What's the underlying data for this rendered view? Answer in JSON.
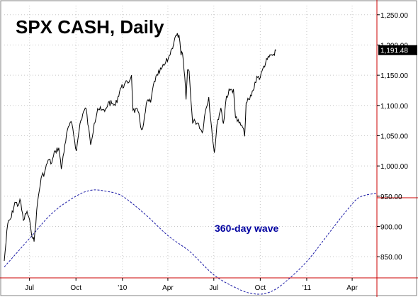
{
  "chart_data": {
    "type": "line",
    "title": "SPX CASH, Daily",
    "colors": {
      "price": "#000000",
      "wave": "#1a1aa6",
      "frame": "#cc0000",
      "grid": "#c8c8c8",
      "title": "#000000",
      "wave_label": "#0000a0",
      "last_box_bg": "#000000",
      "last_box_text": "#ffffff"
    },
    "ylim": [
      815,
      1265
    ],
    "y_ticks": [
      850,
      900,
      950,
      1000,
      1050,
      1100,
      1150,
      1200,
      1250
    ],
    "y_tick_labels": [
      "850.00",
      "900.00",
      "950.00",
      "1,000.00",
      "1,050.00",
      "1,100.00",
      "1,150.00",
      "1,200.00",
      "1,250.00"
    ],
    "x_range": [
      "2009-05-12",
      "2011-05-20"
    ],
    "x_ticks": [
      {
        "label": "Jul",
        "date": "2009-07-01"
      },
      {
        "label": "Oct",
        "date": "2009-10-01"
      },
      {
        "label": "'10",
        "date": "2010-01-01"
      },
      {
        "label": "Apr",
        "date": "2010-04-01"
      },
      {
        "label": "Jul",
        "date": "2010-07-01"
      },
      {
        "label": "Oct",
        "date": "2010-10-01"
      },
      {
        "label": "'11",
        "date": "2011-01-01"
      },
      {
        "label": "Apr",
        "date": "2011-04-01"
      }
    ],
    "last_value": 1191.48,
    "last_value_label": "1,191.48",
    "series": [
      {
        "name": "",
        "kind": "price",
        "points": [
          [
            "2009-05-12",
            843
          ],
          [
            "2009-05-19",
            905
          ],
          [
            "2009-05-26",
            915
          ],
          [
            "2009-06-02",
            940
          ],
          [
            "2009-06-09",
            935
          ],
          [
            "2009-06-12",
            945
          ],
          [
            "2009-06-19",
            910
          ],
          [
            "2009-06-26",
            925
          ],
          [
            "2009-07-03",
            900
          ],
          [
            "2009-07-08",
            880
          ],
          [
            "2009-07-10",
            875
          ],
          [
            "2009-07-17",
            940
          ],
          [
            "2009-07-24",
            980
          ],
          [
            "2009-07-31",
            990
          ],
          [
            "2009-08-07",
            1010
          ],
          [
            "2009-08-14",
            1005
          ],
          [
            "2009-08-21",
            1025
          ],
          [
            "2009-08-28",
            1030
          ],
          [
            "2009-09-02",
            995
          ],
          [
            "2009-09-09",
            1035
          ],
          [
            "2009-09-16",
            1065
          ],
          [
            "2009-09-23",
            1070
          ],
          [
            "2009-10-02",
            1025
          ],
          [
            "2009-10-09",
            1070
          ],
          [
            "2009-10-16",
            1090
          ],
          [
            "2009-10-21",
            1095
          ],
          [
            "2009-10-30",
            1035
          ],
          [
            "2009-11-06",
            1070
          ],
          [
            "2009-11-13",
            1095
          ],
          [
            "2009-11-20",
            1092
          ],
          [
            "2009-11-27",
            1090
          ],
          [
            "2009-12-04",
            1105
          ],
          [
            "2009-12-11",
            1103
          ],
          [
            "2009-12-18",
            1100
          ],
          [
            "2009-12-28",
            1128
          ],
          [
            "2010-01-05",
            1135
          ],
          [
            "2010-01-12",
            1137
          ],
          [
            "2010-01-19",
            1150
          ],
          [
            "2010-01-22",
            1092
          ],
          [
            "2010-02-01",
            1090
          ],
          [
            "2010-02-08",
            1060
          ],
          [
            "2010-02-12",
            1070
          ],
          [
            "2010-02-19",
            1108
          ],
          [
            "2010-02-26",
            1105
          ],
          [
            "2010-03-05",
            1140
          ],
          [
            "2010-03-12",
            1150
          ],
          [
            "2010-03-19",
            1160
          ],
          [
            "2010-03-26",
            1168
          ],
          [
            "2010-04-02",
            1178
          ],
          [
            "2010-04-09",
            1194
          ],
          [
            "2010-04-15",
            1212
          ],
          [
            "2010-04-23",
            1217
          ],
          [
            "2010-04-27",
            1183
          ],
          [
            "2010-04-30",
            1186
          ],
          [
            "2010-05-06",
            1128
          ],
          [
            "2010-05-07",
            1110
          ],
          [
            "2010-05-10",
            1159
          ],
          [
            "2010-05-13",
            1157
          ],
          [
            "2010-05-20",
            1071
          ],
          [
            "2010-05-25",
            1074
          ],
          [
            "2010-06-01",
            1070
          ],
          [
            "2010-06-08",
            1055
          ],
          [
            "2010-06-14",
            1089
          ],
          [
            "2010-06-21",
            1114
          ],
          [
            "2010-06-25",
            1076
          ],
          [
            "2010-07-02",
            1022
          ],
          [
            "2010-07-09",
            1077
          ],
          [
            "2010-07-15",
            1096
          ],
          [
            "2010-07-20",
            1070
          ],
          [
            "2010-07-26",
            1115
          ],
          [
            "2010-08-02",
            1125
          ],
          [
            "2010-08-09",
            1127
          ],
          [
            "2010-08-13",
            1080
          ],
          [
            "2010-08-20",
            1071
          ],
          [
            "2010-08-27",
            1064
          ],
          [
            "2010-08-31",
            1049
          ],
          [
            "2010-09-03",
            1104
          ],
          [
            "2010-09-10",
            1110
          ],
          [
            "2010-09-17",
            1125
          ],
          [
            "2010-09-24",
            1148
          ],
          [
            "2010-10-01",
            1146
          ],
          [
            "2010-10-08",
            1165
          ],
          [
            "2010-10-15",
            1176
          ],
          [
            "2010-10-22",
            1183
          ],
          [
            "2010-10-29",
            1183
          ],
          [
            "2010-11-01",
            1191
          ]
        ]
      },
      {
        "name": "360-day wave",
        "kind": "cycle",
        "points": [
          [
            "2009-05-12",
            833
          ],
          [
            "2009-07-01",
            880
          ],
          [
            "2009-08-15",
            922
          ],
          [
            "2009-10-01",
            950
          ],
          [
            "2009-11-01",
            960
          ],
          [
            "2009-12-01",
            958
          ],
          [
            "2010-01-01",
            950
          ],
          [
            "2010-02-15",
            920
          ],
          [
            "2010-04-01",
            885
          ],
          [
            "2010-05-15",
            858
          ],
          [
            "2010-07-01",
            820
          ],
          [
            "2010-08-15",
            798
          ],
          [
            "2010-09-15",
            789
          ],
          [
            "2010-10-15",
            790
          ],
          [
            "2010-11-15",
            805
          ],
          [
            "2011-01-01",
            842
          ],
          [
            "2011-02-15",
            890
          ],
          [
            "2011-03-20",
            925
          ],
          [
            "2011-04-15",
            948
          ],
          [
            "2011-05-20",
            955
          ]
        ]
      }
    ],
    "annotations": [
      {
        "text": "360-day wave"
      }
    ],
    "grid": false,
    "legend": "none"
  }
}
